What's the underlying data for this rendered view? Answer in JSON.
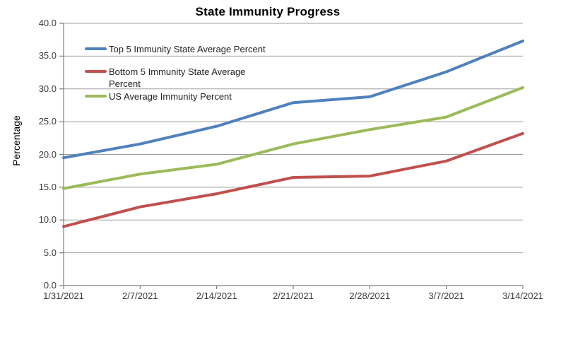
{
  "chart_data": {
    "type": "line",
    "title": "State Immunity Progress",
    "ylabel": "Percentage",
    "xlabel": "",
    "x": [
      "1/31/2021",
      "2/7/2021",
      "2/14/2021",
      "2/21/2021",
      "2/28/2021",
      "3/7/2021",
      "3/14/2021"
    ],
    "series": [
      {
        "name": "Top 5 Immunity State Average Percent",
        "legend_lines": [
          "Top 5 Immunity State Average Percent"
        ],
        "color": "#4F81BD",
        "values": [
          19.5,
          21.6,
          24.3,
          27.9,
          28.8,
          32.6,
          37.3
        ]
      },
      {
        "name": "Bottom 5 Immunity State Average Percent",
        "legend_lines": [
          "Bottom 5 Immunity State Average",
          "Percent"
        ],
        "color": "#C0504D",
        "values": [
          9.0,
          12.0,
          14.0,
          16.5,
          16.7,
          19.0,
          23.2
        ]
      },
      {
        "name": "US Average Immunity Percent",
        "legend_lines": [
          "US Average Immunity Percent"
        ],
        "color": "#9BBB59",
        "values": [
          14.8,
          17.0,
          18.5,
          21.6,
          23.8,
          25.7,
          30.2
        ]
      }
    ],
    "ylim": [
      0,
      40
    ],
    "yticks": [
      "0.0",
      "5.0",
      "10.0",
      "15.0",
      "20.0",
      "25.0",
      "30.0",
      "35.0",
      "40.0"
    ],
    "grid": true,
    "legend_position": "inside-top-left"
  },
  "colors": {
    "background": "#FFFFFF",
    "grid": "#9D9D9D",
    "axis": "#7F7F7F",
    "title": "#171717",
    "tick_label": "#3B3B3B",
    "legend_text": "#222222"
  }
}
